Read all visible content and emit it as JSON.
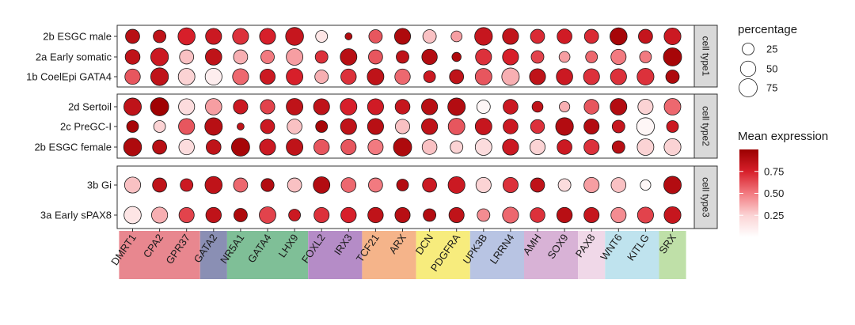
{
  "chart_data": {
    "type": "dotplot",
    "genes": [
      "DMRT1",
      "CPA2",
      "GPR37",
      "GATA2",
      "NR5A1",
      "GATA4",
      "LHX9",
      "FOXL2",
      "IRX3",
      "TCF21",
      "ARX",
      "DCN",
      "PDGFRA",
      "UPK3B",
      "LRRN4",
      "AMH",
      "SOX9",
      "PAX8",
      "WNT6",
      "KITLG",
      "SRX"
    ],
    "gene_groups": [
      {
        "genes": [
          "DMRT1",
          "CPA2",
          "GPR37"
        ],
        "color": "#e8878f"
      },
      {
        "genes": [
          "GATA2"
        ],
        "color": "#8a8fb4"
      },
      {
        "genes": [
          "NR5A1",
          "GATA4",
          "LHX9"
        ],
        "color": "#7fbf97"
      },
      {
        "genes": [
          "FOXL2",
          "IRX3"
        ],
        "color": "#b58cc7"
      },
      {
        "genes": [
          "TCF21",
          "ARX"
        ],
        "color": "#f5b48a"
      },
      {
        "genes": [
          "DCN",
          "PDGFRA"
        ],
        "color": "#f7ec7d"
      },
      {
        "genes": [
          "UPK3B",
          "LRRN4"
        ],
        "color": "#b8c4e3"
      },
      {
        "genes": [
          "AMH",
          "SOX9"
        ],
        "color": "#d8b2d6"
      },
      {
        "genes": [
          "PAX8"
        ],
        "color": "#f0d8e8"
      },
      {
        "genes": [
          "WNT6",
          "KITLG"
        ],
        "color": "#bfe3ee"
      },
      {
        "genes": [
          "SRX"
        ],
        "color": "#bfe0a8"
      }
    ],
    "panels": [
      {
        "strip": "cell type1",
        "rows": [
          {
            "label": "2b ESGC male",
            "expr": [
              0.88,
              0.85,
              0.75,
              0.8,
              0.7,
              0.75,
              0.82,
              0.15,
              0.9,
              0.6,
              0.92,
              0.3,
              0.4,
              0.82,
              0.84,
              0.72,
              0.78,
              0.72,
              0.95,
              0.83,
              0.8
            ],
            "pct": [
              40,
              30,
              65,
              55,
              55,
              55,
              72,
              25,
              5,
              35,
              55,
              35,
              20,
              70,
              55,
              40,
              45,
              40,
              65,
              40,
              62
            ]
          },
          {
            "label": "2a Early somatic",
            "expr": [
              0.85,
              0.8,
              0.3,
              0.85,
              0.35,
              0.5,
              0.4,
              0.7,
              0.88,
              0.6,
              0.85,
              0.9,
              0.92,
              0.7,
              0.75,
              0.65,
              0.4,
              0.55,
              0.5,
              0.5,
              0.95
            ],
            "pct": [
              45,
              70,
              40,
              58,
              40,
              35,
              60,
              30,
              60,
              40,
              30,
              50,
              12,
              55,
              55,
              30,
              20,
              25,
              48,
              25,
              75
            ]
          },
          {
            "label": "1b CoelEpi GATA4",
            "expr": [
              0.6,
              0.85,
              0.25,
              0.1,
              0.55,
              0.8,
              0.75,
              0.35,
              0.7,
              0.85,
              0.55,
              0.8,
              0.85,
              0.6,
              0.35,
              0.85,
              0.8,
              0.7,
              0.7,
              0.7,
              0.92
            ],
            "pct": [
              50,
              70,
              60,
              62,
              55,
              48,
              60,
              35,
              50,
              60,
              50,
              25,
              40,
              60,
              68,
              55,
              58,
              55,
              55,
              62,
              35
            ]
          }
        ]
      },
      {
        "strip": "cell type2",
        "rows": [
          {
            "label": "2d Sertoil",
            "expr": [
              0.85,
              0.98,
              0.2,
              0.4,
              0.8,
              0.65,
              0.85,
              0.85,
              0.75,
              0.78,
              0.82,
              0.88,
              0.9,
              0.05,
              0.8,
              0.85,
              0.35,
              0.6,
              0.9,
              0.25,
              0.55
            ],
            "pct": [
              68,
              75,
              55,
              58,
              42,
              42,
              60,
              55,
              60,
              55,
              45,
              55,
              68,
              35,
              45,
              20,
              18,
              45,
              60,
              48,
              60
            ]
          },
          {
            "label": "2c PreGC-I",
            "expr": [
              0.95,
              0.25,
              0.6,
              0.88,
              0.85,
              0.8,
              0.3,
              0.95,
              0.85,
              0.88,
              0.3,
              0.85,
              0.6,
              0.82,
              0.8,
              0.7,
              0.9,
              0.9,
              0.82,
              0.05,
              0.8
            ],
            "pct": [
              25,
              25,
              55,
              68,
              5,
              40,
              45,
              25,
              55,
              55,
              42,
              55,
              60,
              60,
              45,
              38,
              70,
              48,
              30,
              70,
              25
            ]
          },
          {
            "label": "2b ESGC female",
            "expr": [
              0.92,
              0.88,
              0.2,
              0.85,
              0.95,
              0.8,
              0.85,
              0.6,
              0.6,
              0.5,
              0.92,
              0.3,
              0.25,
              0.2,
              0.8,
              0.25,
              0.8,
              0.7,
              0.88,
              0.25,
              0.25
            ],
            "pct": [
              72,
              40,
              50,
              45,
              75,
              55,
              60,
              50,
              48,
              48,
              75,
              45,
              30,
              60,
              55,
              48,
              45,
              48,
              30,
              60,
              62
            ]
          }
        ]
      },
      {
        "strip": "cell type3",
        "rows": [
          {
            "label": "3b Gi",
            "expr": [
              0.3,
              0.85,
              0.8,
              0.85,
              0.55,
              0.9,
              0.3,
              0.9,
              0.55,
              0.5,
              0.9,
              0.8,
              0.8,
              0.25,
              0.7,
              0.85,
              0.2,
              0.4,
              0.3,
              0.05,
              0.9
            ],
            "pct": [
              55,
              40,
              30,
              65,
              40,
              32,
              40,
              60,
              45,
              40,
              25,
              40,
              62,
              48,
              48,
              40,
              30,
              48,
              45,
              18,
              68
            ]
          },
          {
            "label": "3a Early sPAX8",
            "expr": [
              0.15,
              0.35,
              0.65,
              0.85,
              0.92,
              0.65,
              0.8,
              0.7,
              0.75,
              0.85,
              0.88,
              0.9,
              0.85,
              0.45,
              0.55,
              0.7,
              0.88,
              0.82,
              0.45,
              0.65,
              0.82
            ],
            "pct": [
              65,
              55,
              48,
              50,
              35,
              60,
              25,
              48,
              50,
              50,
              48,
              30,
              48,
              30,
              55,
              45,
              50,
              48,
              48,
              55,
              62
            ]
          }
        ]
      }
    ],
    "size_legend": {
      "title": "percentage",
      "breaks": [
        25,
        50,
        75
      ]
    },
    "color_legend": {
      "title": "Mean expression",
      "breaks": [
        "0.75",
        "0.50",
        "0.25"
      ],
      "break_values": [
        0.75,
        0.5,
        0.25
      ],
      "range": [
        0,
        1
      ],
      "low": "#ffffff",
      "mid": "#ef5b63",
      "high": "#9b0000"
    }
  }
}
